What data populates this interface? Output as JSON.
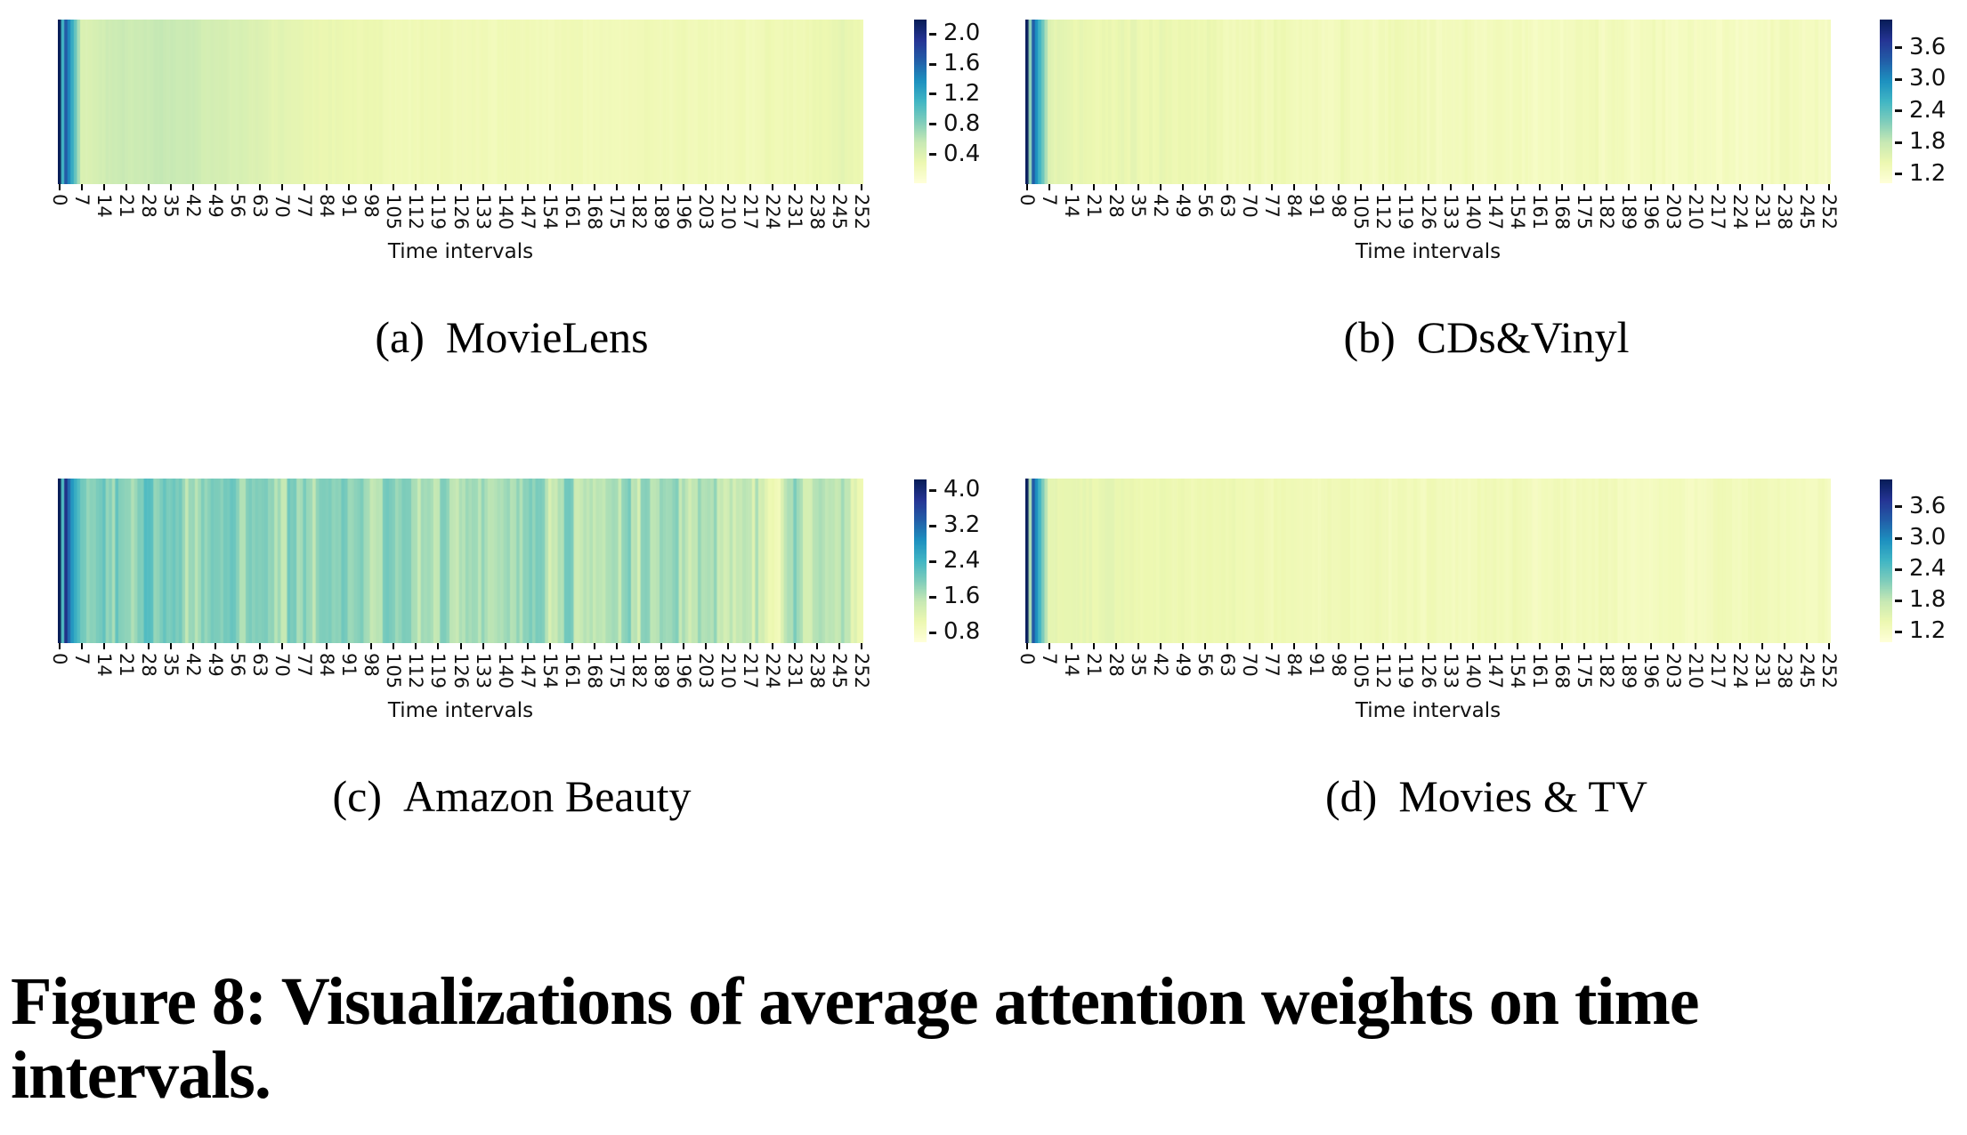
{
  "figure_caption": {
    "lines": [
      "Figure 8: Visualizations of average attention weights on time",
      "intervals."
    ]
  },
  "x_axis": {
    "label": "Time intervals",
    "num_columns": 253,
    "tick_step": 7,
    "ticks": [
      "0",
      "7",
      "14",
      "21",
      "28",
      "35",
      "42",
      "49",
      "56",
      "63",
      "70",
      "77",
      "84",
      "91",
      "98",
      "105",
      "112",
      "119",
      "126",
      "133",
      "140",
      "147",
      "154",
      "161",
      "168",
      "175",
      "182",
      "189",
      "196",
      "203",
      "210",
      "217",
      "224",
      "231",
      "238",
      "245",
      "252"
    ]
  },
  "colormap": {
    "name": "YlGnBu",
    "stops": [
      "#ffffd9",
      "#edf8b1",
      "#c7e9b4",
      "#7fcdbb",
      "#41b6c4",
      "#1d91c0",
      "#225ea8",
      "#253494",
      "#081d58"
    ]
  },
  "chart_data": [
    {
      "id": "a",
      "type": "heatmap",
      "caption_prefix": "(a)",
      "caption_text": "MovieLens",
      "colorbar_ticks": [
        "2.0",
        "1.6",
        "1.2",
        "0.8",
        "0.4"
      ],
      "vmin": 0.02,
      "vmax": 2.19,
      "profile_columns_step": 7,
      "profile_values": [
        2.19,
        0.42,
        0.5,
        0.54,
        0.55,
        0.54,
        0.52,
        0.48,
        0.44,
        0.4,
        0.36,
        0.33,
        0.31,
        0.29,
        0.28,
        0.27,
        0.26,
        0.26,
        0.25,
        0.25,
        0.24,
        0.26,
        0.24,
        0.25,
        0.24,
        0.25,
        0.24,
        0.25,
        0.26,
        0.24,
        0.25,
        0.24,
        0.26,
        0.25,
        0.3,
        0.36,
        0.27
      ],
      "special_columns": {
        "0": 2.19,
        "1": 1.1
      },
      "stripe_noise_amplitude": 0.035,
      "noise_seed": 1
    },
    {
      "id": "b",
      "type": "heatmap",
      "caption_prefix": "(b)",
      "caption_text": "CDs&Vinyl",
      "colorbar_ticks": [
        "3.6",
        "3.0",
        "2.4",
        "1.8",
        "1.2"
      ],
      "vmin": 1.03,
      "vmax": 4.14,
      "profile_columns_step": 7,
      "profile_values": [
        4.1,
        1.52,
        1.5,
        1.46,
        1.44,
        1.42,
        1.4,
        1.38,
        1.38,
        1.37,
        1.36,
        1.35,
        1.35,
        1.34,
        1.34,
        1.33,
        1.33,
        1.32,
        1.32,
        1.32,
        1.31,
        1.31,
        1.31,
        1.3,
        1.3,
        1.3,
        1.3,
        1.29,
        1.29,
        1.29,
        1.29,
        1.28,
        1.28,
        1.28,
        1.28,
        1.28,
        1.27
      ],
      "special_columns": {
        "0": 4.1,
        "1": 2.1
      },
      "stripe_noise_amplitude": 0.1,
      "noise_seed": 2
    },
    {
      "id": "c",
      "type": "heatmap",
      "caption_prefix": "(c)",
      "caption_text": "Amazon Beauty",
      "colorbar_ticks": [
        "4.0",
        "3.2",
        "2.4",
        "1.6",
        "0.8"
      ],
      "vmin": 0.58,
      "vmax": 4.24,
      "profile_columns_step": 7,
      "profile_values": [
        4.24,
        1.95,
        1.92,
        1.95,
        1.9,
        1.92,
        1.88,
        1.9,
        1.85,
        1.88,
        1.82,
        1.86,
        1.8,
        1.84,
        1.8,
        1.82,
        1.76,
        1.8,
        1.74,
        1.58,
        1.7,
        1.78,
        1.64,
        1.76,
        1.7,
        1.74,
        1.66,
        1.72,
        1.62,
        1.7,
        1.6,
        1.68,
        0.85,
        1.72,
        1.55,
        1.65,
        1.0
      ],
      "special_columns": {
        "0": 4.24,
        "1": 2.3
      },
      "stripe_noise_amplitude": 0.4,
      "noise_seed": 3
    },
    {
      "id": "d",
      "type": "heatmap",
      "caption_prefix": "(d)",
      "caption_text": "Movies & TV",
      "colorbar_ticks": [
        "3.6",
        "3.0",
        "2.4",
        "1.8",
        "1.2"
      ],
      "vmin": 1.0,
      "vmax": 4.13,
      "profile_columns_step": 7,
      "profile_values": [
        4.1,
        1.5,
        1.47,
        1.44,
        1.42,
        1.4,
        1.38,
        1.37,
        1.36,
        1.35,
        1.34,
        1.34,
        1.33,
        1.33,
        1.32,
        1.32,
        1.31,
        1.31,
        1.31,
        1.3,
        1.3,
        1.3,
        1.29,
        1.29,
        1.29,
        1.29,
        1.28,
        1.28,
        1.28,
        1.28,
        1.28,
        1.27,
        1.27,
        1.27,
        1.27,
        1.27,
        1.26
      ],
      "special_columns": {
        "0": 4.1,
        "1": 1.9
      },
      "stripe_noise_amplitude": 0.09,
      "noise_seed": 4
    }
  ]
}
